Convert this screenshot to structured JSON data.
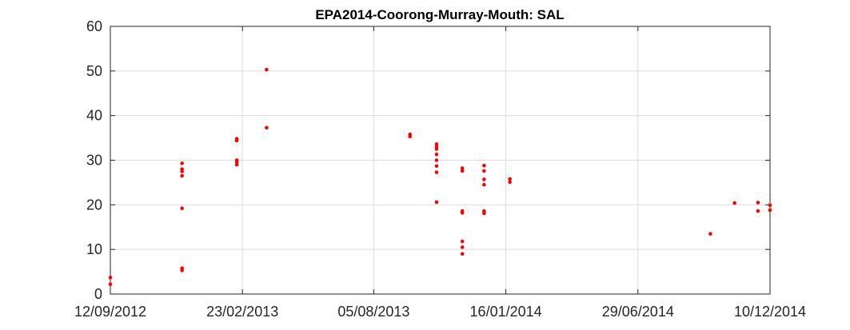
{
  "chart_data": {
    "type": "scatter",
    "title": "EPA2014-Coorong-Murray-Mouth: SAL",
    "xlabel": "",
    "ylabel": "",
    "x_type": "date",
    "xlim": [
      "2012-09-12",
      "2014-12-10"
    ],
    "ylim": [
      0,
      60
    ],
    "x_ticks": [
      "2012-09-12",
      "2013-02-23",
      "2013-08-05",
      "2014-01-16",
      "2014-06-29",
      "2014-12-10"
    ],
    "x_tick_labels": [
      "12/09/2012",
      "23/02/2013",
      "05/08/2013",
      "16/01/2014",
      "29/06/2014",
      "10/12/2014"
    ],
    "y_ticks": [
      0,
      10,
      20,
      30,
      40,
      50,
      60
    ],
    "y_tick_labels": [
      "0",
      "10",
      "20",
      "30",
      "40",
      "50",
      "60"
    ],
    "grid": true,
    "marker_color": "#ff0000",
    "series": [
      {
        "points": [
          [
            "2012-09-12",
            3.7
          ],
          [
            "2012-09-12",
            2.2
          ],
          [
            "2012-12-10",
            29.3
          ],
          [
            "2012-12-10",
            28.0
          ],
          [
            "2012-12-10",
            27.5
          ],
          [
            "2012-12-10",
            26.5
          ],
          [
            "2012-12-10",
            19.2
          ],
          [
            "2012-12-10",
            5.8
          ],
          [
            "2012-12-10",
            5.3
          ],
          [
            "2013-02-16",
            34.8
          ],
          [
            "2013-02-16",
            34.4
          ],
          [
            "2013-02-16",
            30.0
          ],
          [
            "2013-02-16",
            29.5
          ],
          [
            "2013-02-16",
            29.0
          ],
          [
            "2013-03-25",
            50.3
          ],
          [
            "2013-03-25",
            37.3
          ],
          [
            "2013-09-19",
            35.8
          ],
          [
            "2013-09-19",
            35.3
          ],
          [
            "2013-10-22",
            33.6
          ],
          [
            "2013-10-22",
            33.0
          ],
          [
            "2013-10-22",
            32.5
          ],
          [
            "2013-10-22",
            31.3
          ],
          [
            "2013-10-22",
            30.0
          ],
          [
            "2013-10-22",
            28.7
          ],
          [
            "2013-10-22",
            27.3
          ],
          [
            "2013-10-22",
            20.6
          ],
          [
            "2013-11-23",
            28.2
          ],
          [
            "2013-11-23",
            27.6
          ],
          [
            "2013-11-23",
            18.6
          ],
          [
            "2013-11-23",
            18.2
          ],
          [
            "2013-11-23",
            11.8
          ],
          [
            "2013-11-23",
            10.5
          ],
          [
            "2013-11-23",
            9.0
          ],
          [
            "2013-12-20",
            28.8
          ],
          [
            "2013-12-20",
            27.6
          ],
          [
            "2013-12-20",
            25.7
          ],
          [
            "2013-12-20",
            24.5
          ],
          [
            "2013-12-20",
            18.6
          ],
          [
            "2013-12-20",
            18.1
          ],
          [
            "2014-01-21",
            25.8
          ],
          [
            "2014-01-21",
            25.1
          ],
          [
            "2014-09-27",
            13.5
          ],
          [
            "2014-10-27",
            20.4
          ],
          [
            "2014-11-25",
            20.5
          ],
          [
            "2014-11-25",
            18.6
          ],
          [
            "2014-12-10",
            19.9
          ],
          [
            "2014-12-10",
            18.8
          ]
        ]
      }
    ]
  }
}
